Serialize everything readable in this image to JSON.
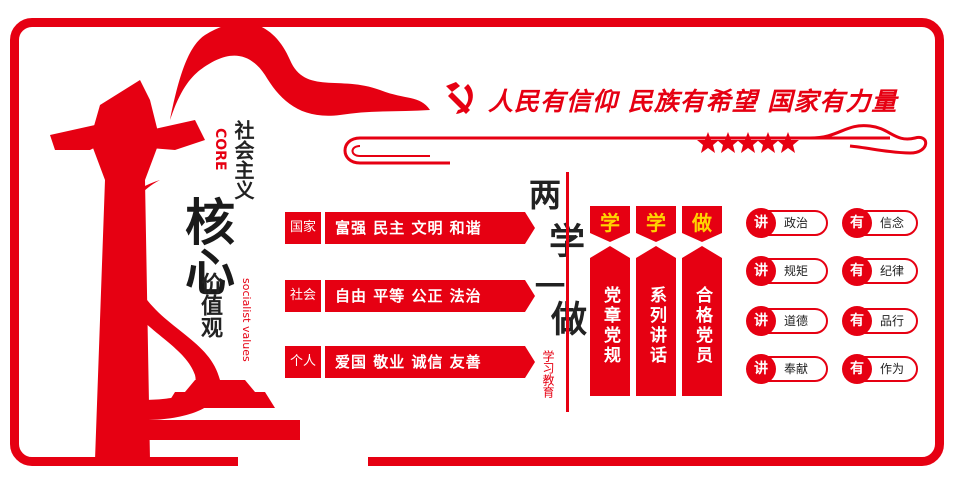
{
  "slogan": "人民有信仰  民族有希望  国家有力量",
  "core_en": "CORE",
  "socialist_en": "socialist values",
  "title_top": "社会主义",
  "title_big": "核心",
  "title_small": "价值观",
  "values_rows": [
    {
      "tag": "国家",
      "text": "富强  民主  文明  和谐"
    },
    {
      "tag": "社会",
      "text": "自由  平等  公正  法治"
    },
    {
      "tag": "个人",
      "text": "爱国  敬业  诚信  友善"
    }
  ],
  "liangxue": {
    "top": "两",
    "mid": "学",
    "line": "一",
    "bottom": "做",
    "sub": "学习教育"
  },
  "columns": [
    {
      "head": "学",
      "body": "党章党规"
    },
    {
      "head": "学",
      "body": "系列讲话"
    },
    {
      "head": "做",
      "body": "合格党员"
    }
  ],
  "pairs": [
    {
      "a": "讲",
      "at": "政治",
      "b": "有",
      "bt": "信念"
    },
    {
      "a": "讲",
      "at": "规矩",
      "b": "有",
      "bt": "纪律"
    },
    {
      "a": "讲",
      "at": "道德",
      "b": "有",
      "bt": "品行"
    },
    {
      "a": "讲",
      "at": "奉献",
      "b": "有",
      "bt": "作为"
    }
  ],
  "colors": {
    "accent": "#e60012",
    "highlight": "#ffd400"
  }
}
